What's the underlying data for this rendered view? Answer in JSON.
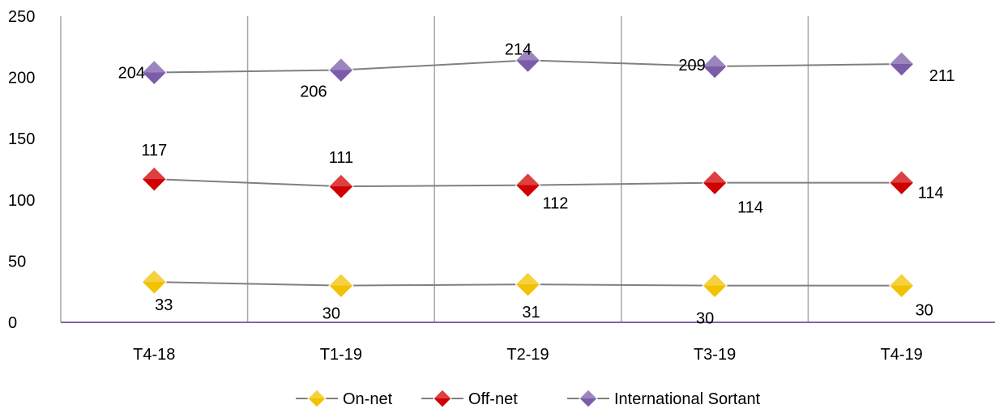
{
  "chart_data": {
    "type": "line",
    "categories": [
      "T4-18",
      "T1-19",
      "T2-19",
      "T3-19",
      "T4-19"
    ],
    "ylim": [
      0,
      250
    ],
    "yticks": [
      0,
      50,
      100,
      150,
      200,
      250
    ],
    "grid": "vertical",
    "legend_position": "bottom",
    "series": [
      {
        "name": "On-net",
        "values": [
          33,
          30,
          31,
          30,
          30
        ],
        "color": "#f2c200",
        "marker": "diamond"
      },
      {
        "name": "Off-net",
        "values": [
          117,
          111,
          112,
          114,
          114
        ],
        "color": "#d00000",
        "marker": "diamond"
      },
      {
        "name": "International Sortant",
        "values": [
          204,
          206,
          214,
          209,
          211
        ],
        "color": "#7b5ca8",
        "marker": "diamond"
      }
    ],
    "data_labels": [
      [
        "33",
        "30",
        "31",
        "30",
        "30"
      ],
      [
        "117",
        "111",
        "112",
        "114",
        "114"
      ],
      [
        "204",
        "206",
        "214",
        "209",
        "211"
      ]
    ],
    "axis_color": "#8064a2",
    "grid_color": "#a6a6a6",
    "line_color": "#808080"
  }
}
